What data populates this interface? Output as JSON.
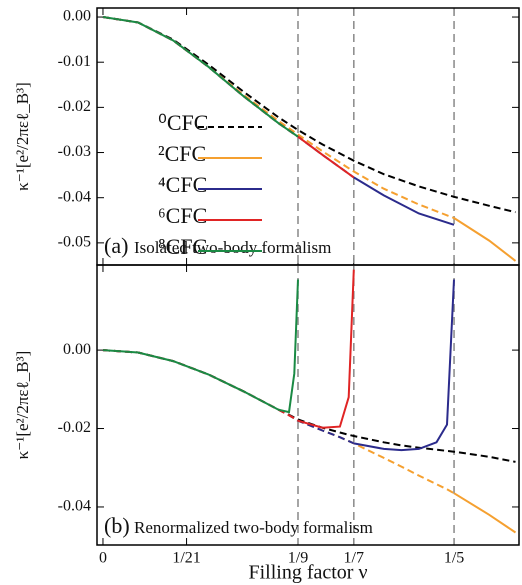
{
  "chart_data": [
    {
      "type": "line",
      "ylabel": "κ⁻¹[e²/2πεℓ_B³]",
      "label": "(a)",
      "annotation": "Isolated two-body formalism",
      "legend": "center left",
      "x": [
        0,
        0.02,
        0.04,
        0.06,
        0.08,
        0.1,
        0.1111,
        0.125,
        0.1429,
        0.16,
        0.18,
        0.2,
        0.22,
        0.235
      ],
      "xlim": [
        -0.0034,
        0.237
      ],
      "ylim": [
        -0.0549,
        0.002
      ],
      "yticks": [
        {
          "value": 0,
          "label": "0.00"
        },
        -0.01,
        -0.02,
        -0.03,
        -0.04,
        -0.05
      ],
      "vlines": [
        0.1111,
        0.1429,
        0.2
      ],
      "series": [
        {
          "name": "⁰CFC",
          "color": "#000000",
          "dashed_values": [
            0,
            -0.0012,
            -0.005,
            -0.0105,
            -0.0165,
            -0.0222,
            -0.025,
            -0.0282,
            -0.0318,
            -0.0348,
            -0.0375,
            -0.0398,
            -0.0418,
            -0.0432
          ]
        },
        {
          "name": "²CFC",
          "color": "#f5a030",
          "values": [
            null,
            null,
            null,
            null,
            null,
            null,
            null,
            null,
            null,
            null,
            null,
            -0.0445,
            -0.0495,
            -0.054
          ],
          "dashed_values": [
            0,
            -0.0012,
            -0.0052,
            -0.011,
            -0.0172,
            -0.023,
            -0.026,
            -0.0297,
            -0.0342,
            -0.038,
            -0.0415,
            -0.0445,
            null,
            null
          ]
        },
        {
          "name": "⁴CFC",
          "color": "#2b2b8c",
          "values": [
            null,
            null,
            null,
            null,
            null,
            null,
            null,
            null,
            -0.0355,
            -0.0395,
            -0.0435,
            -0.046,
            null,
            null
          ],
          "dashed_values": [
            0,
            -0.0012,
            -0.0052,
            -0.011,
            -0.0175,
            -0.0235,
            -0.0265,
            -0.0305,
            -0.0355,
            null,
            null,
            null,
            null,
            null
          ]
        },
        {
          "name": "⁶CFC",
          "color": "#e02424",
          "values": [
            null,
            null,
            null,
            null,
            null,
            null,
            -0.0265,
            -0.0305,
            -0.0355,
            null,
            null,
            null,
            null,
            null
          ],
          "dashed_values": [
            0,
            -0.0012,
            -0.0052,
            -0.011,
            -0.0175,
            -0.0235,
            -0.0265,
            null,
            null,
            null,
            null,
            null,
            null,
            null
          ]
        },
        {
          "name": "⁸CFC",
          "color": "#1a8a44",
          "values": [
            0,
            -0.0012,
            -0.0052,
            -0.011,
            -0.0175,
            -0.0235,
            -0.0265,
            null,
            null,
            null,
            null,
            null,
            null,
            null
          ]
        }
      ]
    },
    {
      "type": "line",
      "ylabel": "κ⁻¹[e²/2πεℓ_B³]",
      "xlabel": "Filling factor ν",
      "label": "(b)",
      "annotation": "Renormalized two-body formalism",
      "x": [
        0,
        0.02,
        0.04,
        0.06,
        0.08,
        0.1,
        0.106,
        0.109,
        0.1111,
        0.125,
        0.135,
        0.14,
        0.1429,
        0.16,
        0.17,
        0.18,
        0.19,
        0.196,
        0.2,
        0.22,
        0.235
      ],
      "xlim": [
        -0.0034,
        0.237
      ],
      "ylim": [
        -0.0497,
        0.0217
      ],
      "xticks": [
        0,
        {
          "value": 0.047619,
          "label": "1/21"
        },
        {
          "value": 0.111111,
          "label": "1/9"
        },
        {
          "value": 0.142857,
          "label": "1/7"
        },
        {
          "value": 0.2,
          "label": "1/5"
        }
      ],
      "yticks": [
        {
          "value": 0,
          "label": "0.00"
        },
        -0.02,
        -0.04
      ],
      "vlines": [
        0.1111,
        0.1429,
        0.2
      ],
      "series": [
        {
          "color": "#000000",
          "dashed_values": [
            0,
            -0.0006,
            -0.0028,
            -0.0062,
            -0.0105,
            -0.0152,
            -0.0165,
            -0.0172,
            -0.0177,
            -0.0198,
            -0.021,
            -0.0216,
            -0.0219,
            -0.0235,
            -0.0243,
            -0.0249,
            -0.0254,
            -0.0257,
            -0.0259,
            -0.0272,
            -0.0285
          ]
        },
        {
          "color": "#f5a030",
          "values": [
            null,
            null,
            null,
            null,
            null,
            null,
            null,
            null,
            null,
            null,
            null,
            null,
            null,
            null,
            null,
            null,
            null,
            null,
            -0.0365,
            -0.042,
            -0.0465
          ],
          "dashed_values": [
            0,
            -0.0006,
            -0.0028,
            -0.0062,
            -0.0105,
            -0.0152,
            -0.0166,
            -0.0174,
            -0.018,
            -0.0205,
            -0.0222,
            -0.0232,
            -0.0238,
            -0.0275,
            -0.0297,
            -0.032,
            -0.0342,
            -0.0355,
            -0.0365,
            null,
            null
          ]
        },
        {
          "color": "#2b2b8c",
          "values": [
            null,
            null,
            null,
            null,
            null,
            null,
            null,
            null,
            null,
            null,
            null,
            null,
            -0.0238,
            -0.0252,
            -0.0255,
            -0.0252,
            -0.0235,
            -0.019,
            0.018,
            null,
            null
          ],
          "dashed_values": [
            0,
            -0.0006,
            -0.0028,
            -0.0062,
            -0.0105,
            -0.0152,
            -0.0166,
            -0.0174,
            -0.018,
            -0.0205,
            -0.0222,
            -0.0232,
            -0.0238,
            null,
            null,
            null,
            null,
            null,
            null,
            null,
            null
          ]
        },
        {
          "color": "#e02424",
          "values": [
            null,
            null,
            null,
            null,
            null,
            null,
            null,
            null,
            -0.018,
            -0.0198,
            -0.0195,
            -0.012,
            0.0205,
            null,
            null,
            null,
            null,
            null,
            null,
            null,
            null
          ],
          "dashed_values": [
            0,
            -0.0006,
            -0.0028,
            -0.0062,
            -0.0105,
            -0.0152,
            -0.0166,
            -0.0174,
            -0.018,
            null,
            null,
            null,
            null,
            null,
            null,
            null,
            null,
            null,
            null,
            null,
            null
          ]
        },
        {
          "color": "#1a8a44",
          "values": [
            0,
            -0.0006,
            -0.0028,
            -0.0062,
            -0.0105,
            -0.0152,
            -0.0158,
            -0.006,
            0.018,
            null,
            null,
            null,
            null,
            null,
            null,
            null,
            null,
            null,
            null,
            null,
            null
          ]
        }
      ]
    }
  ]
}
